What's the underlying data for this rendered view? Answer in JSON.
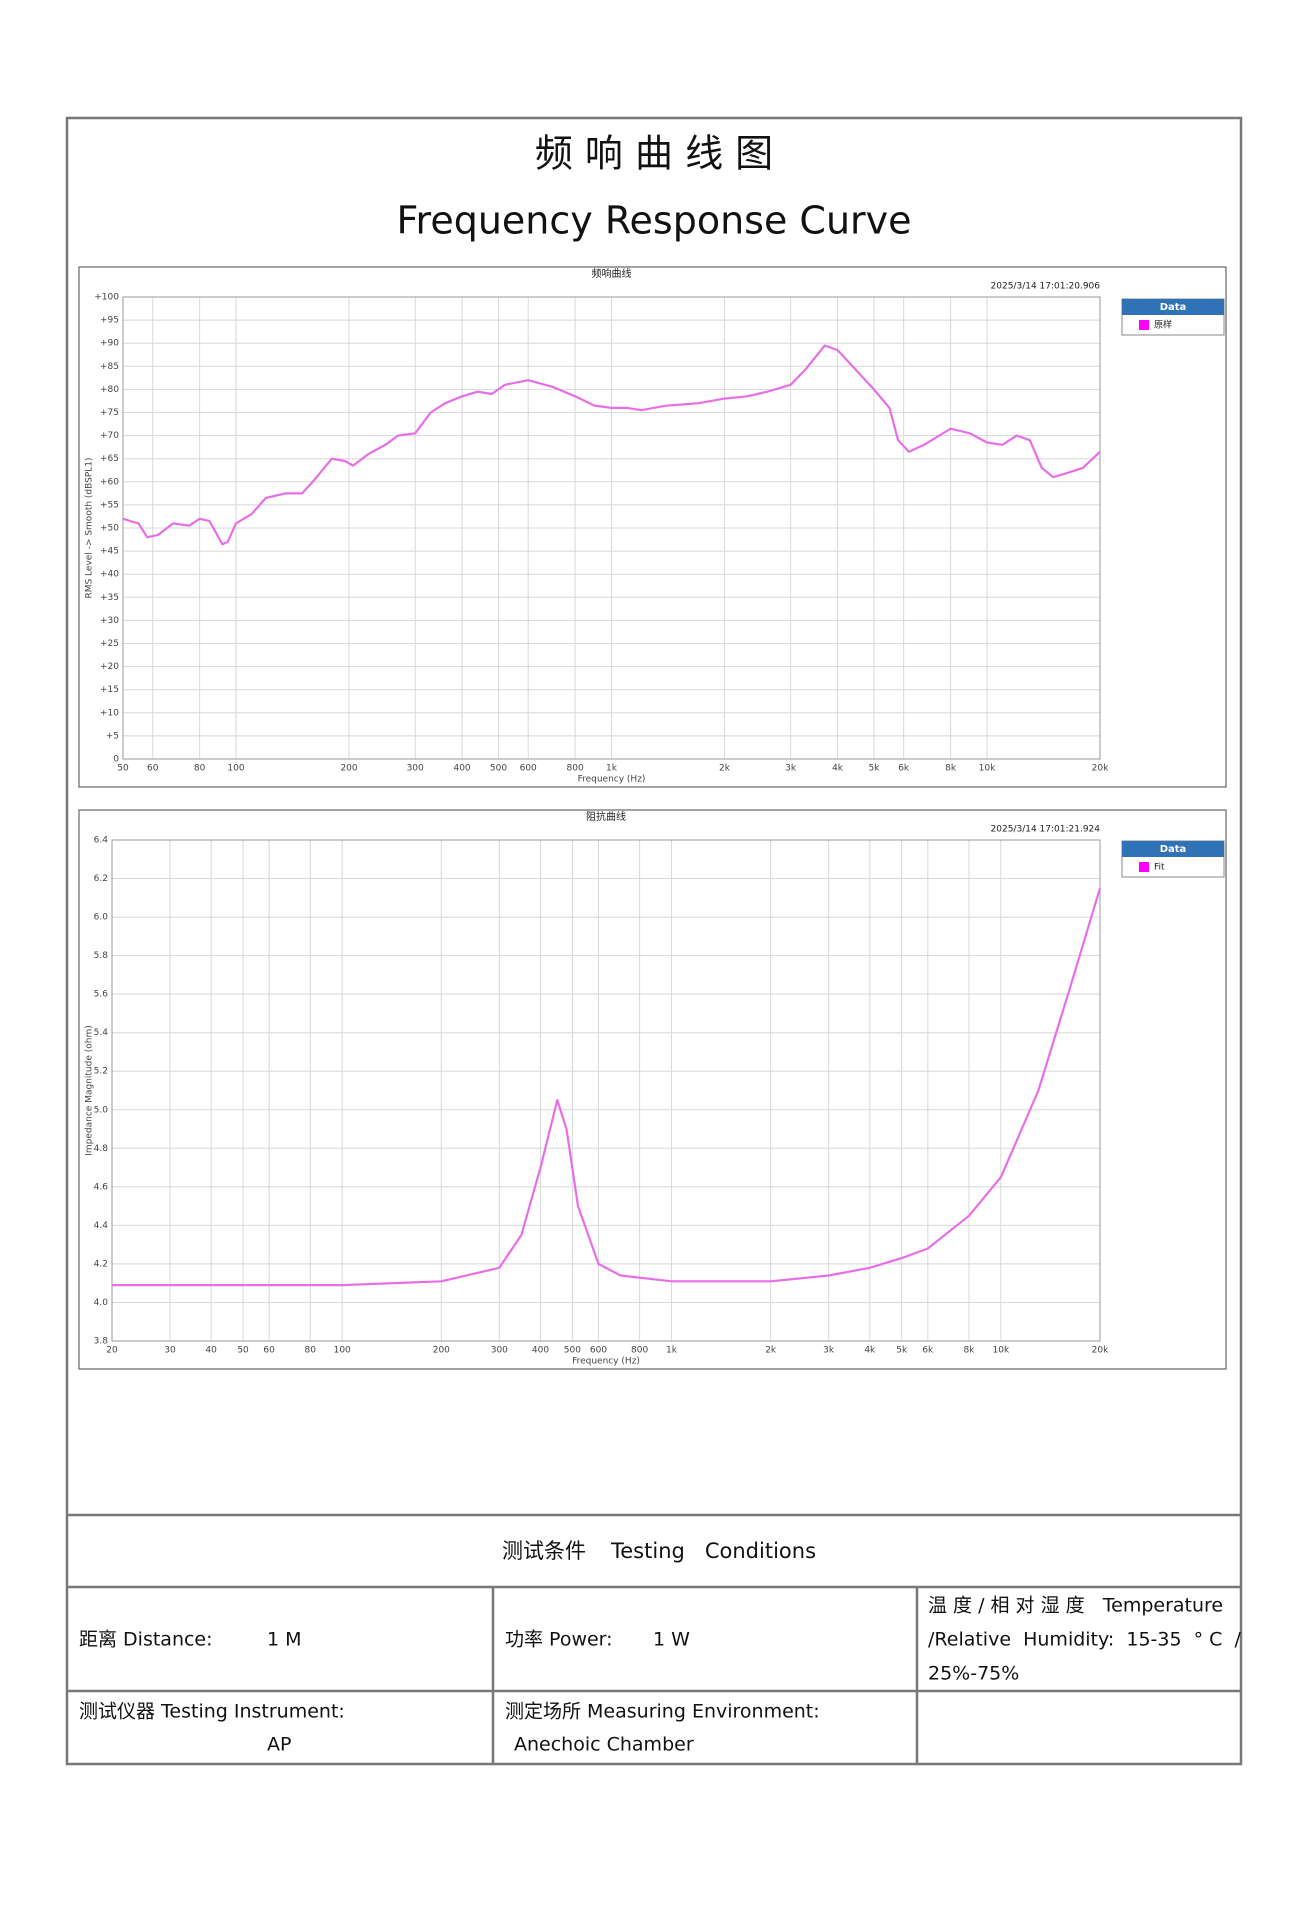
{
  "header": {
    "title_cn": "频 响 曲 线 图",
    "title_en": "Frequency Response Curve"
  },
  "chart_data": [
    {
      "type": "line",
      "title": "频响曲线",
      "timestamp": "2025/3/14 17:01:20.906",
      "x_label": "Frequency (Hz)",
      "y_label": "RMS Level -> Smooth (dBSPL1)",
      "legend_title": "Data",
      "legend": "right",
      "grid": true,
      "xscale": "log",
      "xlim": [
        50,
        20000
      ],
      "ylim": [
        0,
        100
      ],
      "xticks": [
        50,
        60,
        80,
        100,
        200,
        300,
        400,
        500,
        600,
        800,
        {
          "value": 1000,
          "label": "1k"
        },
        {
          "value": 2000,
          "label": "2k"
        },
        {
          "value": 3000,
          "label": "3k"
        },
        {
          "value": 4000,
          "label": "4k"
        },
        {
          "value": 5000,
          "label": "5k"
        },
        {
          "value": 6000,
          "label": "6k"
        },
        {
          "value": 8000,
          "label": "8k"
        },
        {
          "value": 10000,
          "label": "10k"
        },
        {
          "value": 20000,
          "label": "20k"
        }
      ],
      "yticks": [
        0,
        {
          "value": 5,
          "label": "+5"
        },
        {
          "value": 10,
          "label": "+10"
        },
        {
          "value": 15,
          "label": "+15"
        },
        {
          "value": 20,
          "label": "+20"
        },
        {
          "value": 25,
          "label": "+25"
        },
        {
          "value": 30,
          "label": "+30"
        },
        {
          "value": 35,
          "label": "+35"
        },
        {
          "value": 40,
          "label": "+40"
        },
        {
          "value": 45,
          "label": "+45"
        },
        {
          "value": 50,
          "label": "+50"
        },
        {
          "value": 55,
          "label": "+55"
        },
        {
          "value": 60,
          "label": "+60"
        },
        {
          "value": 65,
          "label": "+65"
        },
        {
          "value": 70,
          "label": "+70"
        },
        {
          "value": 75,
          "label": "+75"
        },
        {
          "value": 80,
          "label": "+80"
        },
        {
          "value": 85,
          "label": "+85"
        },
        {
          "value": 90,
          "label": "+90"
        },
        {
          "value": 95,
          "label": "+95"
        },
        {
          "value": 100,
          "label": "+100"
        }
      ],
      "x": [
        50,
        55,
        58,
        62,
        68,
        75,
        80,
        85,
        92,
        95,
        100,
        110,
        120,
        135,
        150,
        160,
        180,
        195,
        205,
        225,
        250,
        270,
        300,
        330,
        360,
        400,
        440,
        480,
        520,
        600,
        700,
        800,
        900,
        1000,
        1100,
        1200,
        1400,
        1700,
        2000,
        2300,
        2600,
        3000,
        3300,
        3700,
        4000,
        4500,
        5000,
        5500,
        5800,
        6200,
        6800,
        8000,
        9000,
        10000,
        11000,
        12000,
        13000,
        14000,
        15000,
        16500,
        18000,
        20000
      ],
      "series": [
        {
          "name": "原样",
          "color": "#e86ee8",
          "values": [
            52,
            51,
            48,
            48.5,
            51,
            50.5,
            52,
            51.5,
            46.5,
            47,
            51,
            53,
            56.5,
            57.5,
            57.5,
            60,
            65,
            64.5,
            63.5,
            66,
            68,
            70,
            70.5,
            75,
            77,
            78.5,
            79.5,
            79,
            81,
            82,
            80.5,
            78.5,
            76.5,
            76,
            76,
            75.5,
            76.5,
            77,
            78,
            78.5,
            79.5,
            81,
            84.5,
            89.5,
            88.5,
            84,
            80,
            76,
            69,
            66.5,
            68,
            71.5,
            70.5,
            68.5,
            68,
            70,
            69,
            63,
            61,
            62,
            63,
            66.5
          ]
        }
      ]
    },
    {
      "type": "line",
      "title": "阻抗曲线",
      "timestamp": "2025/3/14 17:01:21.924",
      "x_label": "Frequency (Hz)",
      "y_label": "Impedance Magnitude (ohm)",
      "legend_title": "Data",
      "legend": "right",
      "grid": true,
      "xscale": "log",
      "xlim": [
        20,
        20000
      ],
      "ylim": [
        3.8,
        6.4
      ],
      "xticks": [
        20,
        30,
        40,
        50,
        60,
        80,
        100,
        200,
        300,
        400,
        500,
        600,
        800,
        {
          "value": 1000,
          "label": "1k"
        },
        {
          "value": 2000,
          "label": "2k"
        },
        {
          "value": 3000,
          "label": "3k"
        },
        {
          "value": 4000,
          "label": "4k"
        },
        {
          "value": 5000,
          "label": "5k"
        },
        {
          "value": 6000,
          "label": "6k"
        },
        {
          "value": 8000,
          "label": "8k"
        },
        {
          "value": 10000,
          "label": "10k"
        },
        {
          "value": 20000,
          "label": "20k"
        }
      ],
      "yticks": [
        3.8,
        {
          "value": 4,
          "label": "4.0"
        },
        4.2,
        4.4,
        4.6,
        4.8,
        {
          "value": 5,
          "label": "5.0"
        },
        5.2,
        5.4,
        5.6,
        5.8,
        {
          "value": 6,
          "label": "6.0"
        },
        6.2,
        6.4
      ],
      "x": [
        20,
        100,
        200,
        300,
        350,
        400,
        450,
        480,
        520,
        600,
        700,
        1000,
        2000,
        3000,
        4000,
        5000,
        6000,
        8000,
        10000,
        13000,
        16000,
        20000
      ],
      "series": [
        {
          "name": "Fit",
          "color": "#e86ee8",
          "values": [
            4.09,
            4.09,
            4.11,
            4.18,
            4.35,
            4.7,
            5.05,
            4.9,
            4.5,
            4.2,
            4.14,
            4.11,
            4.11,
            4.14,
            4.18,
            4.23,
            4.28,
            4.45,
            4.65,
            5.1,
            5.6,
            6.15
          ]
        }
      ]
    }
  ],
  "conditions": {
    "heading_cn": "测试条件",
    "heading_en": "Testing   Conditions",
    "distance_label": "距离 Distance:",
    "distance_value": "1 M",
    "power_label": "功率 Power:",
    "power_value": "1 W",
    "env_line1": "温 度 / 相 对 湿 度   Temperature",
    "env_line2": "/Relative  Humidity:  15-35  ° C  /",
    "env_line3": "25%-75%",
    "instrument_label": "测试仪器 Testing Instrument:",
    "instrument_value": "AP",
    "place_label": "测定场所 Measuring Environment:",
    "place_value": "Anechoic Chamber"
  }
}
